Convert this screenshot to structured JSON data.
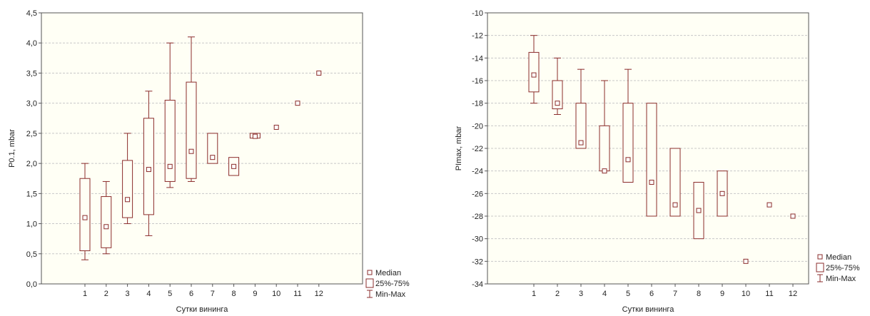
{
  "colors": {
    "plot_bg": "#fffff5",
    "frame": "#555555",
    "grid": "#c8c8c8",
    "box": "#8b2c2c",
    "text": "#222222"
  },
  "legend": {
    "median": "Median",
    "quartiles": "25%-75%",
    "range": "Min-Max"
  },
  "chart_data": [
    {
      "type": "box",
      "title": "",
      "xlabel": "Сутки вининга",
      "ylabel": "P0.1, mbar",
      "ylim": [
        0,
        4.5
      ],
      "y_ticks": [
        "0,0",
        "0,5",
        "1,0",
        "1,5",
        "2,0",
        "2,5",
        "3,0",
        "3,5",
        "4,0",
        "4,5"
      ],
      "y_tick_values": [
        0,
        0.5,
        1,
        1.5,
        2,
        2.5,
        3,
        3.5,
        4,
        4.5
      ],
      "categories": [
        "1",
        "2",
        "3",
        "4",
        "5",
        "6",
        "7",
        "8",
        "9",
        "10",
        "11",
        "12"
      ],
      "grid": "horizontal",
      "legend_position": "bottom-right",
      "boxes": [
        {
          "x": "1",
          "median": 1.1,
          "q1": 0.55,
          "q3": 1.75,
          "min": 0.4,
          "max": 2.0
        },
        {
          "x": "2",
          "median": 0.95,
          "q1": 0.6,
          "q3": 1.45,
          "min": 0.5,
          "max": 1.7
        },
        {
          "x": "3",
          "median": 1.4,
          "q1": 1.1,
          "q3": 2.05,
          "min": 1.0,
          "max": 2.5
        },
        {
          "x": "4",
          "median": 1.9,
          "q1": 1.15,
          "q3": 2.75,
          "min": 0.8,
          "max": 3.2
        },
        {
          "x": "5",
          "median": 1.95,
          "q1": 1.7,
          "q3": 3.05,
          "min": 1.6,
          "max": 4.0
        },
        {
          "x": "6",
          "median": 2.2,
          "q1": 1.75,
          "q3": 3.35,
          "min": 1.7,
          "max": 4.1
        },
        {
          "x": "7",
          "median": 2.1,
          "q1": 2.0,
          "q3": 2.5,
          "min": 2.0,
          "max": 2.5
        },
        {
          "x": "8",
          "median": 1.95,
          "q1": 1.8,
          "q3": 2.1,
          "min": 1.8,
          "max": 2.1
        },
        {
          "x": "9",
          "median": 2.45,
          "q1": 2.42,
          "q3": 2.5,
          "min": 2.42,
          "max": 2.5
        },
        {
          "x": "10",
          "median": 2.6,
          "q1": 2.6,
          "q3": 2.6,
          "min": 2.6,
          "max": 2.6
        },
        {
          "x": "11",
          "median": 3.0,
          "q1": 3.0,
          "q3": 3.0,
          "min": 3.0,
          "max": 3.0
        },
        {
          "x": "12",
          "median": 3.5,
          "q1": 3.5,
          "q3": 3.5,
          "min": 3.5,
          "max": 3.5
        }
      ]
    },
    {
      "type": "box",
      "title": "",
      "xlabel": "Сутки вининга",
      "ylabel": "PImax, mbar",
      "ylim": [
        -34,
        -10
      ],
      "y_ticks": [
        "-34",
        "-32",
        "-30",
        "-28",
        "-26",
        "-24",
        "-22",
        "-20",
        "-18",
        "-16",
        "-14",
        "-12",
        "-10"
      ],
      "y_tick_values": [
        -34,
        -32,
        -30,
        -28,
        -26,
        -24,
        -22,
        -20,
        -18,
        -16,
        -14,
        -12,
        -10
      ],
      "categories": [
        "1",
        "2",
        "3",
        "4",
        "5",
        "6",
        "7",
        "8",
        "9",
        "10",
        "11",
        "12"
      ],
      "grid": "horizontal",
      "legend_position": "bottom-right",
      "boxes": [
        {
          "x": "1",
          "median": -15.5,
          "q1": -17,
          "q3": -13.5,
          "min": -18,
          "max": -12
        },
        {
          "x": "2",
          "median": -18,
          "q1": -18.5,
          "q3": -16,
          "min": -19,
          "max": -14
        },
        {
          "x": "3",
          "median": -21.5,
          "q1": -22,
          "q3": -18,
          "min": -22,
          "max": -15
        },
        {
          "x": "4",
          "median": -24,
          "q1": -24,
          "q3": -20,
          "min": -24,
          "max": -16
        },
        {
          "x": "5",
          "median": -23,
          "q1": -25,
          "q3": -18,
          "min": -25,
          "max": -15
        },
        {
          "x": "6",
          "median": -25,
          "q1": -28,
          "q3": -18,
          "min": -28,
          "max": -18
        },
        {
          "x": "7",
          "median": -27,
          "q1": -28,
          "q3": -22,
          "min": -28,
          "max": -22
        },
        {
          "x": "8",
          "median": -27.5,
          "q1": -30,
          "q3": -25,
          "min": -30,
          "max": -25
        },
        {
          "x": "9",
          "median": -26,
          "q1": -28,
          "q3": -24,
          "min": -28,
          "max": -24
        },
        {
          "x": "10",
          "median": -32,
          "q1": -32,
          "q3": -32,
          "min": -32,
          "max": -32
        },
        {
          "x": "11",
          "median": -27,
          "q1": -27,
          "q3": -27,
          "min": -27,
          "max": -27
        },
        {
          "x": "12",
          "median": -28,
          "q1": -28,
          "q3": -28,
          "min": -28,
          "max": -28
        }
      ]
    }
  ]
}
